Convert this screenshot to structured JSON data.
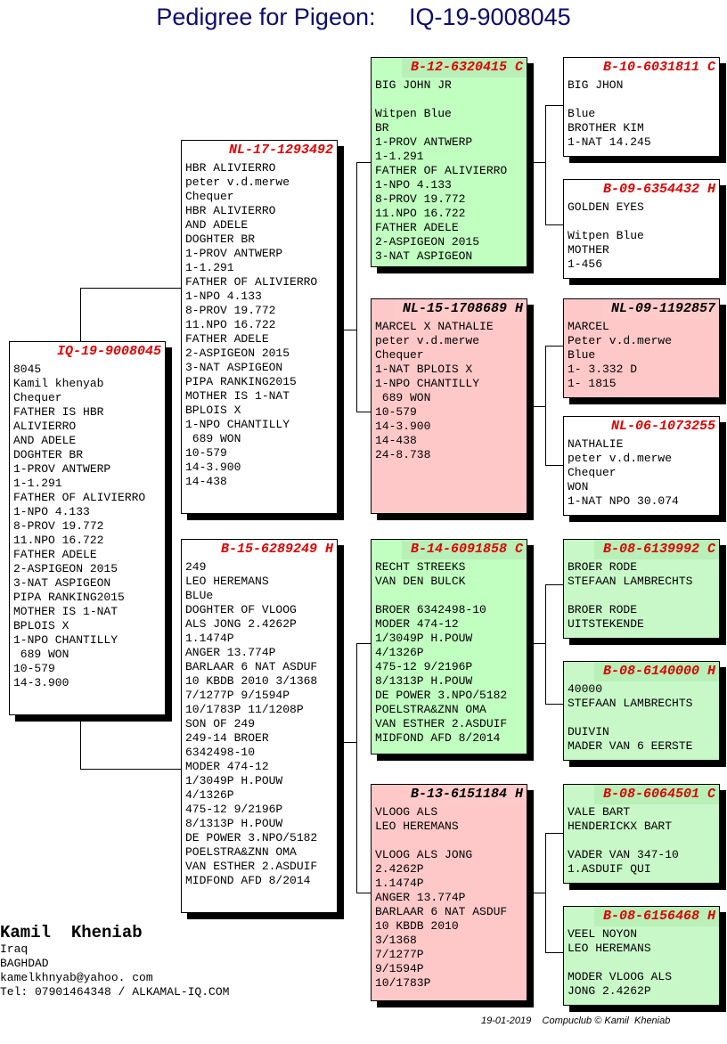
{
  "title": {
    "prefix": "Pedigree for Pigeon:",
    "ring": "IQ-19-9008045"
  },
  "subject": {
    "ring": "IQ-19-9008045",
    "lines": [
      "8045",
      "Kamil khenyab",
      "Chequer",
      "FATHER IS HBR",
      "ALIVIERRO",
      "AND ADELE",
      "DOGHTER BR",
      "1-PROV ANTWERP",
      "1-1.291",
      "FATHER OF ALIVIERRO",
      "1-NPO 4.133",
      "8-PROV 19.772",
      "11.NPO 16.722",
      "FATHER ADELE",
      "2-ASPIGEON 2015",
      "3-NAT ASPIGEON",
      "PIPA RANKING2015",
      "MOTHER IS 1-NAT",
      "BPLOIS X",
      "1-NPO CHANTILLY",
      " 689 WON",
      "10-579",
      "14-3.900"
    ]
  },
  "sire": {
    "ring": "NL-17-1293492",
    "lines": [
      "HBR ALIVIERRO",
      "peter v.d.merwe",
      "Chequer",
      "HBR ALIVIERRO",
      "AND ADELE",
      "DOGHTER BR",
      "1-PROV ANTWERP",
      "1-1.291",
      "FATHER OF ALIVIERRO",
      "1-NPO 4.133",
      "8-PROV 19.772",
      "11.NPO 16.722",
      "FATHER ADELE",
      "2-ASPIGEON 2015",
      "3-NAT ASPIGEON",
      "PIPA RANKING2015",
      "MOTHER IS 1-NAT",
      "BPLOIS X",
      "1-NPO CHANTILLY",
      " 689 WON",
      "10-579",
      "14-3.900",
      "14-438"
    ]
  },
  "dam": {
    "ring": "B-15-6289249 H",
    "lines": [
      "249",
      "LEO HEREMANS",
      "BLUe",
      "DOGHTER OF VLOOG",
      "ALS JONG 2.4262P",
      "1.1474P",
      "ANGER 13.774P",
      "BARLAAR 6 NAT ASDUF",
      "10 KBDB 2010 3/1368",
      "7/1277P 9/1594P",
      "10/1783P 11/1208P",
      "SON OF 249",
      "249-14 BROER",
      "6342498-10",
      "MODER 474-12",
      "1/3049P H.POUW",
      "4/1326P",
      "475-12 9/2196P",
      "8/1313P H.POUW",
      "DE POWER 3.NPO/5182",
      "POELSTRA&ZNN OMA",
      "VAN ESTHER 2.ASDUIF",
      "MIDFOND AFD 8/2014"
    ]
  },
  "ss": {
    "ring": "B-12-6320415 C",
    "lines": [
      "BIG JOHN JR",
      "",
      "Witpen Blue",
      "BR",
      "1-PROV ANTWERP",
      "1-1.291",
      "FATHER OF ALIVIERRO",
      "1-NPO 4.133",
      "8-PROV 19.772",
      "11.NPO 16.722",
      "FATHER ADELE",
      "2-ASPIGEON 2015",
      "3-NAT ASPIGEON"
    ]
  },
  "sd": {
    "ring": "NL-15-1708689 H",
    "lines": [
      "MARCEL X NATHALIE",
      "peter v.d.merwe",
      "Chequer",
      "1-NAT BPLOIS X",
      "1-NPO CHANTILLY",
      " 689 WON",
      "10-579",
      "14-3.900",
      "14-438",
      "24-8.738"
    ]
  },
  "ds": {
    "ring": "B-14-6091858 C",
    "lines": [
      "RECHT STREEKS",
      "VAN DEN BULCK",
      "",
      "BROER 6342498-10",
      "MODER 474-12",
      "1/3049P H.POUW",
      "4/1326P",
      "475-12 9/2196P",
      "8/1313P H.POUW",
      "DE POWER 3.NPO/5182",
      "POELSTRA&ZNN OMA",
      "VAN ESTHER 2.ASDUIF",
      "MIDFOND AFD 8/2014"
    ]
  },
  "dd": {
    "ring": "B-13-6151184 H",
    "lines": [
      "VLOOG ALS",
      "LEO HEREMANS",
      "",
      "VLOOG ALS JONG",
      "2.4262P",
      "1.1474P",
      "ANGER 13.774P",
      "BARLAAR 6 NAT ASDUF",
      "10 KBDB 2010",
      "3/1368",
      "7/1277P",
      "9/1594P",
      "10/1783P"
    ]
  },
  "sss": {
    "ring": "B-10-6031811 C",
    "lines": [
      "BIG JHON",
      "",
      "Blue",
      "BROTHER KIM",
      "1-NAT 14.245"
    ]
  },
  "ssd": {
    "ring": "B-09-6354432 H",
    "lines": [
      "GOLDEN EYES",
      "",
      "Witpen Blue",
      "MOTHER",
      "1-456"
    ]
  },
  "sds": {
    "ring": "NL-09-1192857",
    "lines": [
      "MARCEL",
      "Peter v.d.merwe",
      "Blue",
      "1- 3.332 D",
      "1- 1815"
    ]
  },
  "sdd": {
    "ring": "NL-06-1073255",
    "lines": [
      "NATHALIE",
      "peter v.d.merwe",
      "Chequer",
      "WON",
      "1-NAT NPO 30.074"
    ]
  },
  "dss": {
    "ring": "B-08-6139992 C",
    "lines": [
      "BROER RODE",
      "STEFAAN LAMBRECHTS",
      "",
      "BROER RODE",
      "UITSTEKENDE"
    ]
  },
  "dsd": {
    "ring": "B-08-6140000 H",
    "lines": [
      "40000",
      "STEFAAN LAMBRECHTS",
      "",
      "DUIVIN",
      "MADER VAN 6 EERSTE"
    ]
  },
  "dds": {
    "ring": "B-08-6064501 C",
    "lines": [
      "VALE BART",
      "HENDERICKX BART",
      "",
      "VADER VAN 347-10",
      "1.ASDUIF QUI"
    ]
  },
  "ddd": {
    "ring": "B-08-6156468 H",
    "lines": [
      "VEEL NOYON",
      "LEO HEREMANS",
      "",
      "MODER VLOOG ALS",
      "JONG 2.4262P"
    ]
  },
  "owner": {
    "name": "Kamil  Kheniab",
    "country": "Iraq",
    "city": "BAGHDAD",
    "email": "kamelkhnyab@yahoo. com",
    "tel": "Tel: 07901464348 / ALKAMAL-IQ.COM"
  },
  "footer": {
    "date": "19-01-2019",
    "credit": "Compuclub © Kamil  Kheniab"
  },
  "colors": {
    "title": "#0d0d6b",
    "ring_red": "#e00000",
    "green": "#c0ffc0",
    "pink": "#ffc8c8"
  }
}
